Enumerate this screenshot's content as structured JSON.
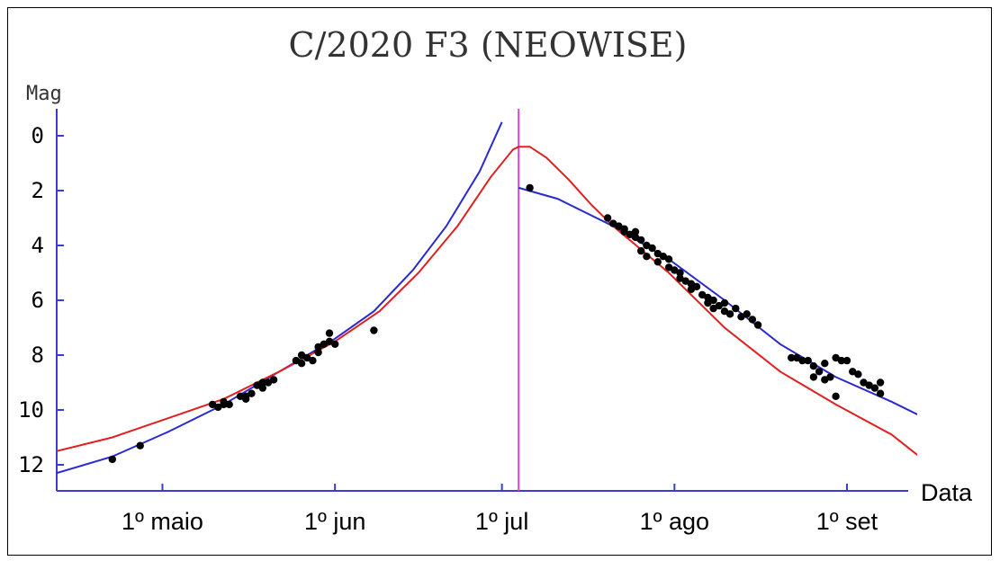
{
  "chart_data": {
    "type": "scatter",
    "title": "C/2020 F3 (NEOWISE)",
    "ylabel": "Mag",
    "xlabel": "Data",
    "y_inverted": true,
    "ylim": [
      13,
      -1
    ],
    "xlim_days": [
      0,
      153
    ],
    "yticks": [
      "0",
      "2",
      "4",
      "6",
      "8",
      "10",
      "12"
    ],
    "ytick_values": [
      0,
      2,
      4,
      6,
      8,
      10,
      12
    ],
    "xtick_labels": [
      "1º maio",
      "1º jun",
      "1º jul",
      "1º ago",
      "1º set"
    ],
    "xtick_positions_days": [
      19,
      50,
      80,
      111,
      142
    ],
    "perihelion_day": 83,
    "colors": {
      "axis": "#3b3bd6",
      "blue_fit": "#2a2ad0",
      "red_fit": "#e02020",
      "perihelion": "#dd44dd",
      "points": "#000000"
    },
    "series": [
      {
        "type": "scatter",
        "points": [
          [
            10,
            11.8
          ],
          [
            15,
            11.3
          ],
          [
            28,
            9.8
          ],
          [
            29,
            9.9
          ],
          [
            30,
            9.8
          ],
          [
            30,
            9.7
          ],
          [
            31,
            9.8
          ],
          [
            33,
            9.5
          ],
          [
            34,
            9.6
          ],
          [
            34,
            9.5
          ],
          [
            35,
            9.4
          ],
          [
            36,
            9.1
          ],
          [
            37,
            9.2
          ],
          [
            37,
            9.0
          ],
          [
            38,
            9.0
          ],
          [
            39,
            8.9
          ],
          [
            43,
            8.2
          ],
          [
            44,
            8.3
          ],
          [
            44,
            8.0
          ],
          [
            45,
            8.1
          ],
          [
            46,
            8.2
          ],
          [
            47,
            7.9
          ],
          [
            47,
            7.7
          ],
          [
            48,
            7.6
          ],
          [
            49,
            7.5
          ],
          [
            49,
            7.2
          ],
          [
            50,
            7.6
          ],
          [
            57,
            7.1
          ],
          [
            85,
            1.9
          ],
          [
            99,
            3.0
          ],
          [
            100,
            3.2
          ],
          [
            101,
            3.3
          ],
          [
            102,
            3.5
          ],
          [
            102,
            3.4
          ],
          [
            103,
            3.6
          ],
          [
            104,
            3.7
          ],
          [
            104,
            3.5
          ],
          [
            105,
            3.8
          ],
          [
            105,
            4.2
          ],
          [
            106,
            4.0
          ],
          [
            106,
            4.4
          ],
          [
            107,
            4.1
          ],
          [
            108,
            4.3
          ],
          [
            108,
            4.6
          ],
          [
            109,
            4.4
          ],
          [
            110,
            4.5
          ],
          [
            110,
            4.8
          ],
          [
            111,
            4.9
          ],
          [
            112,
            5.0
          ],
          [
            112,
            5.2
          ],
          [
            113,
            5.3
          ],
          [
            114,
            5.4
          ],
          [
            114,
            5.6
          ],
          [
            115,
            5.5
          ],
          [
            116,
            5.8
          ],
          [
            117,
            5.9
          ],
          [
            117,
            6.1
          ],
          [
            118,
            6.0
          ],
          [
            118,
            6.3
          ],
          [
            119,
            6.2
          ],
          [
            120,
            6.4
          ],
          [
            120,
            6.1
          ],
          [
            121,
            6.5
          ],
          [
            122,
            6.3
          ],
          [
            123,
            6.6
          ],
          [
            124,
            6.5
          ],
          [
            125,
            6.7
          ],
          [
            126,
            6.9
          ],
          [
            132,
            8.1
          ],
          [
            133,
            8.1
          ],
          [
            134,
            8.2
          ],
          [
            135,
            8.2
          ],
          [
            136,
            8.4
          ],
          [
            136,
            8.8
          ],
          [
            137,
            8.6
          ],
          [
            138,
            8.9
          ],
          [
            138,
            8.3
          ],
          [
            139,
            8.8
          ],
          [
            140,
            8.1
          ],
          [
            140,
            9.5
          ],
          [
            141,
            8.2
          ],
          [
            142,
            8.2
          ],
          [
            143,
            8.6
          ],
          [
            144,
            8.7
          ],
          [
            145,
            9.0
          ],
          [
            146,
            9.1
          ],
          [
            147,
            9.2
          ],
          [
            148,
            9.4
          ],
          [
            148,
            9.0
          ]
        ]
      },
      {
        "type": "line",
        "color": "blue",
        "points": [
          [
            0,
            12.3
          ],
          [
            10,
            11.7
          ],
          [
            20,
            10.8
          ],
          [
            30,
            9.8
          ],
          [
            40,
            8.6
          ],
          [
            50,
            7.4
          ],
          [
            57,
            6.4
          ],
          [
            64,
            4.9
          ],
          [
            70,
            3.3
          ],
          [
            76,
            1.3
          ],
          [
            80,
            -0.5
          ],
          [
            83,
            1.9
          ],
          [
            90,
            2.3
          ],
          [
            100,
            3.3
          ],
          [
            110,
            4.5
          ],
          [
            120,
            6.0
          ],
          [
            130,
            7.6
          ],
          [
            140,
            8.8
          ],
          [
            150,
            9.7
          ],
          [
            155,
            10.2
          ]
        ]
      },
      {
        "type": "line",
        "color": "red",
        "points": [
          [
            0,
            11.5
          ],
          [
            10,
            11.0
          ],
          [
            20,
            10.3
          ],
          [
            30,
            9.6
          ],
          [
            40,
            8.6
          ],
          [
            50,
            7.5
          ],
          [
            58,
            6.4
          ],
          [
            65,
            5.0
          ],
          [
            72,
            3.3
          ],
          [
            78,
            1.5
          ],
          [
            82,
            0.5
          ],
          [
            83,
            0.4
          ],
          [
            85,
            0.4
          ],
          [
            88,
            0.8
          ],
          [
            92,
            1.6
          ],
          [
            96,
            2.5
          ],
          [
            100,
            3.3
          ],
          [
            110,
            5.0
          ],
          [
            120,
            7.0
          ],
          [
            130,
            8.6
          ],
          [
            140,
            9.8
          ],
          [
            150,
            10.9
          ],
          [
            155,
            11.7
          ]
        ]
      }
    ]
  }
}
